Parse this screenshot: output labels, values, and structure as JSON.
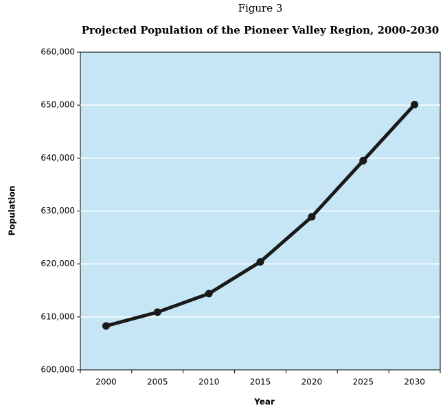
{
  "chart_data": {
    "type": "line",
    "title": "Figure 3",
    "subtitle": "Projected Population of the Pioneer Valley Region, 2000-2030",
    "x_label": "Year",
    "y_label": "Population",
    "categories": [
      "2000",
      "2005",
      "2010",
      "2015",
      "2020",
      "2025",
      "2030"
    ],
    "series": [
      {
        "name": "Population",
        "color": "#1a1a1a",
        "values": [
          608300,
          610900,
          614400,
          620400,
          628900,
          639500,
          650100
        ]
      }
    ],
    "ylim": [
      600000,
      660000
    ],
    "yticks": [
      {
        "value": 600000,
        "label": "600,000"
      },
      {
        "value": 610000,
        "label": "610,000"
      },
      {
        "value": 620000,
        "label": "620,000"
      },
      {
        "value": 630000,
        "label": "630,000"
      },
      {
        "value": 640000,
        "label": "640,000"
      },
      {
        "value": 650000,
        "label": "650,000"
      },
      {
        "value": 660000,
        "label": "660,000"
      }
    ],
    "grid": true,
    "background": "#c6e6f5"
  }
}
